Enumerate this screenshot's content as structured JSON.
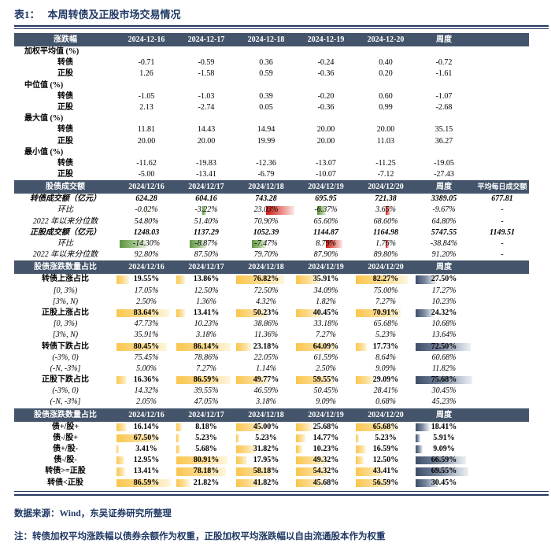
{
  "title": {
    "tag": "表1：",
    "text": "本周转债及正股市场交易情况"
  },
  "colors": {
    "header_bg": "#44546A",
    "accent_navy": "#1F3864",
    "bar_yellow": "#FAC64F",
    "bar_gray": "#3F4E69",
    "bar_red": "#CE1B14",
    "bar_green": "#5E9240"
  },
  "table": {
    "sections": [
      {
        "header": {
          "label": "涨跌幅",
          "cols": [
            "2024-12-16",
            "2024-12-17",
            "2024-12-18",
            "2024-12-19",
            "2024-12-20",
            "周度",
            ""
          ]
        },
        "rows": [
          {
            "label": "加权平均值 (%)",
            "style": "group",
            "values": []
          },
          {
            "label": "转债",
            "style": "sub",
            "values": [
              "-0.71",
              "-0.59",
              "0.36",
              "-0.24",
              "0.40",
              "-0.72"
            ]
          },
          {
            "label": "正股",
            "style": "sub",
            "values": [
              "1.26",
              "-1.58",
              "0.59",
              "-0.36",
              "0.20",
              "-1.61"
            ]
          },
          {
            "label": "中位值 (%)",
            "style": "group",
            "values": []
          },
          {
            "label": "转债",
            "style": "sub",
            "values": [
              "-1.05",
              "-1.03",
              "0.39",
              "-0.20",
              "0.60",
              "-1.07"
            ]
          },
          {
            "label": "正股",
            "style": "sub",
            "values": [
              "2.13",
              "-2.74",
              "0.05",
              "-0.36",
              "0.99",
              "-2.68"
            ]
          },
          {
            "label": "最大值 (%)",
            "style": "group",
            "values": []
          },
          {
            "label": "转债",
            "style": "sub",
            "values": [
              "11.81",
              "14.43",
              "14.94",
              "20.00",
              "20.00",
              "35.15"
            ]
          },
          {
            "label": "正股",
            "style": "sub",
            "values": [
              "20.00",
              "20.00",
              "19.99",
              "20.00",
              "11.03",
              "36.27"
            ]
          },
          {
            "label": "最小值 (%)",
            "style": "group",
            "values": []
          },
          {
            "label": "转债",
            "style": "sub",
            "values": [
              "-11.62",
              "-19.83",
              "-12.36",
              "-13.07",
              "-11.25",
              "-19.05"
            ]
          },
          {
            "label": "正股",
            "style": "sub",
            "values": [
              "-5.00",
              "-13.41",
              "-6.79",
              "-10.07",
              "-7.12",
              "-27.43"
            ]
          }
        ]
      },
      {
        "header": {
          "label": "股债成交额",
          "cols": [
            "2024/12/16",
            "2024/12/17",
            "2024/12/18",
            "2024/12/19",
            "2024/12/20",
            "周度",
            "平均每日成交额"
          ]
        },
        "rows": [
          {
            "label": "转债成交额（亿元）",
            "style": "money",
            "values": [
              "624.28",
              "604.16",
              "743.28",
              "695.95",
              "721.38",
              "3389.05",
              "677.81"
            ]
          },
          {
            "label": "环比",
            "style": "italic",
            "values": [
              "-0.02%",
              "-3.22%",
              "23.03%",
              "-6.37%",
              "3.65%",
              "-9.67%",
              "-"
            ],
            "bars": [
              {
                "t": "green",
                "w": 0.02
              },
              {
                "t": "green",
                "w": 0.14
              },
              {
                "t": "red",
                "w": 0.95
              },
              {
                "t": "green",
                "w": 0.28
              },
              {
                "t": "red",
                "w": 0.16
              },
              null,
              null
            ]
          },
          {
            "label": "2022 年以来分位数",
            "style": "italic",
            "values": [
              "54.80%",
              "51.40%",
              "70.90%",
              "65.60%",
              "68.60%",
              "64.80%",
              "-"
            ]
          },
          {
            "label": "正股成交额（亿元）",
            "style": "money",
            "values": [
              "1248.03",
              "1137.29",
              "1052.39",
              "1144.87",
              "1164.98",
              "5747.55",
              "1149.51"
            ]
          },
          {
            "label": "环比",
            "style": "italic",
            "values": [
              "-14.30%",
              "-8.87%",
              "-7.47%",
              "8.79%",
              "1.76%",
              "-38.84%",
              "-"
            ],
            "bars": [
              {
                "t": "green",
                "w": 0.9
              },
              {
                "t": "green",
                "w": 0.56
              },
              {
                "t": "green",
                "w": 0.47
              },
              {
                "t": "red",
                "w": 0.55
              },
              {
                "t": "red",
                "w": 0.11
              },
              null,
              null
            ]
          },
          {
            "label": "2022 年以来分位数",
            "style": "italic",
            "values": [
              "92.80%",
              "87.50%",
              "79.70%",
              "87.90%",
              "89.80%",
              "91.20%",
              "-"
            ]
          }
        ]
      },
      {
        "header": {
          "label": "股债涨跌数量占比",
          "cols": [
            "2024/12/16",
            "2024/12/17",
            "2024/12/18",
            "2024/12/19",
            "2024/12/20",
            "周度",
            ""
          ]
        },
        "rows": [
          {
            "label": "转债上涨占比",
            "style": "boldrow",
            "autobars": true,
            "values": [
              "19.55%",
              "13.86%",
              "76.82%",
              "35.91%",
              "82.27%",
              "27.50%"
            ]
          },
          {
            "label": "[0, 3%)",
            "style": "italic",
            "values": [
              "17.05%",
              "12.50%",
              "72.50%",
              "34.09%",
              "75.00%",
              "17.27%"
            ]
          },
          {
            "label": "[3%, N)",
            "style": "italic",
            "values": [
              "2.50%",
              "1.36%",
              "4.32%",
              "1.82%",
              "7.27%",
              "10.23%"
            ]
          },
          {
            "label": "正股上涨占比",
            "style": "boldrow",
            "autobars": true,
            "values": [
              "83.64%",
              "13.41%",
              "50.23%",
              "40.45%",
              "70.91%",
              "24.32%"
            ]
          },
          {
            "label": "[0, 3%)",
            "style": "italic",
            "values": [
              "47.73%",
              "10.23%",
              "38.86%",
              "33.18%",
              "65.68%",
              "10.68%"
            ]
          },
          {
            "label": "[3%, N)",
            "style": "italic",
            "values": [
              "35.91%",
              "3.18%",
              "11.36%",
              "7.27%",
              "5.23%",
              "13.64%"
            ]
          },
          {
            "label": "转债下跌占比",
            "style": "boldrow",
            "autobars": true,
            "values": [
              "80.45%",
              "86.14%",
              "23.18%",
              "64.09%",
              "17.73%",
              "72.50%"
            ]
          },
          {
            "label": "(-3%, 0)",
            "style": "italic",
            "values": [
              "75.45%",
              "78.86%",
              "22.05%",
              "61.59%",
              "8.64%",
              "60.68%"
            ]
          },
          {
            "label": "(-N, -3%]",
            "style": "italic",
            "values": [
              "5.00%",
              "7.27%",
              "1.14%",
              "2.50%",
              "9.09%",
              "11.82%"
            ]
          },
          {
            "label": "正股下跌占比",
            "style": "boldrow",
            "autobars": true,
            "values": [
              "16.36%",
              "86.59%",
              "49.77%",
              "59.55%",
              "29.09%",
              "75.68%"
            ]
          },
          {
            "label": "(-3%, 0)",
            "style": "italic",
            "values": [
              "14.32%",
              "39.55%",
              "46.59%",
              "50.45%",
              "28.41%",
              "30.45%"
            ]
          },
          {
            "label": "(-N, -3%]",
            "style": "italic",
            "values": [
              "2.05%",
              "47.05%",
              "3.18%",
              "9.09%",
              "0.68%",
              "45.23%"
            ]
          }
        ]
      },
      {
        "header": {
          "label": "股债涨跌数量占比",
          "cols": [
            "2024/12/16",
            "2024/12/17",
            "2024/12/18",
            "2024/12/19",
            "2024/12/20",
            "周度",
            ""
          ]
        },
        "rows": [
          {
            "label": "债+/股+",
            "style": "boldrow",
            "autobars": true,
            "values": [
              "16.14%",
              "8.18%",
              "45.00%",
              "25.68%",
              "65.68%",
              "18.41%"
            ]
          },
          {
            "label": "债-/股+",
            "style": "boldrow",
            "autobars": true,
            "values": [
              "67.50%",
              "5.23%",
              "5.23%",
              "14.77%",
              "5.23%",
              "5.91%"
            ]
          },
          {
            "label": "债+/股-",
            "style": "boldrow",
            "autobars": true,
            "values": [
              "3.41%",
              "5.68%",
              "31.82%",
              "10.23%",
              "16.59%",
              "9.09%"
            ]
          },
          {
            "label": "债-/股-",
            "style": "boldrow",
            "autobars": true,
            "values": [
              "12.95%",
              "80.91%",
              "17.95%",
              "49.32%",
              "12.50%",
              "66.59%"
            ]
          },
          {
            "label": "转债>=正股",
            "style": "boldrow",
            "autobars": true,
            "values": [
              "13.41%",
              "78.18%",
              "58.18%",
              "54.32%",
              "43.41%",
              "69.55%"
            ]
          },
          {
            "label": "转债<正股",
            "style": "boldrow",
            "autobars": true,
            "values": [
              "86.59%",
              "21.82%",
              "41.82%",
              "45.68%",
              "56.59%",
              "30.45%"
            ]
          }
        ]
      }
    ]
  },
  "footer": {
    "source": "数据来源：Wind，东吴证券研究所整理",
    "note": "注：转债加权平均涨跌幅以债券余额作为权重，正股加权平均涨跌幅以自由流通股本作为权重"
  }
}
